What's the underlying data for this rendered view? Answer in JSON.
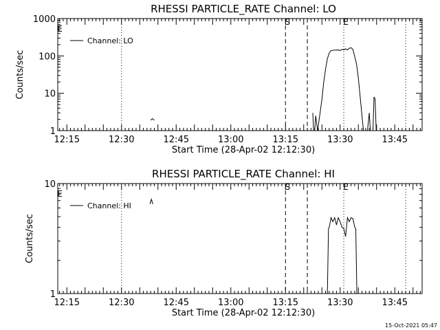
{
  "chart_data": [
    {
      "type": "line",
      "title": "RHESSI PARTICLE_RATE Channel: LO",
      "xlabel": "Start Time (28-Apr-02 12:12:30)",
      "ylabel": "Counts/sec",
      "yscale": "log",
      "ylim": [
        1,
        1000
      ],
      "xlim": [
        "12:12:30",
        "13:52:30"
      ],
      "x_ticks": [
        "12:15",
        "12:30",
        "12:45",
        "13:00",
        "13:15",
        "13:30",
        "13:45"
      ],
      "y_ticks": [
        "1",
        "10",
        "100",
        "1000"
      ],
      "legend": {
        "placement": "top-left",
        "label": "Channel: LO"
      },
      "event_lines": [
        {
          "time": "12:30",
          "style": "dotted",
          "label": ""
        },
        {
          "time": "13:15",
          "style": "dashed",
          "label": "S"
        },
        {
          "time": "13:21",
          "style": "dashed",
          "label": ""
        },
        {
          "time": "13:31",
          "style": "dotted",
          "label": "E"
        },
        {
          "time": "13:48",
          "style": "dotted",
          "label": ""
        }
      ],
      "corner_labels": [
        "E"
      ],
      "series": [
        {
          "segments": [
            [
              [
                "12:38",
                1.9
              ],
              [
                "12:38.5",
                2.1
              ],
              [
                "12:39",
                1.9
              ]
            ],
            [
              [
                "13:22.5",
                3.0
              ],
              [
                "13:22.7",
                1.0
              ]
            ],
            [
              [
                "13:23",
                1.0
              ],
              [
                "13:23.3",
                2.5
              ],
              [
                "13:23.8",
                1.0
              ]
            ],
            [
              [
                "13:23.8",
                1.0
              ],
              [
                "13:24.5",
                3.0
              ],
              [
                "13:25",
                7
              ],
              [
                "13:25.5",
                20
              ],
              [
                "13:26",
                45
              ],
              [
                "13:26.5",
                85
              ],
              [
                "13:27",
                120
              ],
              [
                "13:27.5",
                138
              ],
              [
                "13:28",
                142
              ],
              [
                "13:29",
                144
              ],
              [
                "13:29.5",
                145
              ],
              [
                "13:30",
                140
              ],
              [
                "13:30.5",
                150
              ],
              [
                "13:31",
                145
              ],
              [
                "13:31.5",
                155
              ],
              [
                "13:32",
                145
              ],
              [
                "13:32.5",
                160
              ],
              [
                "13:33",
                165
              ],
              [
                "13:33.5",
                150
              ],
              [
                "13:34",
                95
              ],
              [
                "13:34.5",
                60
              ],
              [
                "13:35",
                25
              ],
              [
                "13:35.5",
                8
              ],
              [
                "13:36",
                2.5
              ],
              [
                "13:36.4",
                1.0
              ]
            ],
            [
              [
                "13:37.5",
                1.0
              ],
              [
                "13:38",
                3.0
              ],
              [
                "13:38.3",
                1.0
              ]
            ],
            [
              [
                "13:39",
                1.0
              ],
              [
                "13:39.3",
                8
              ],
              [
                "13:39.6",
                7
              ],
              [
                "13:39.9",
                1.0
              ]
            ]
          ]
        }
      ]
    },
    {
      "type": "line",
      "title": "RHESSI PARTICLE_RATE Channel: HI",
      "xlabel": "Start Time (28-Apr-02 12:12:30)",
      "ylabel": "Counts/sec",
      "yscale": "log",
      "ylim": [
        1,
        10
      ],
      "xlim": [
        "12:12:30",
        "13:52:30"
      ],
      "x_ticks": [
        "12:15",
        "12:30",
        "12:45",
        "13:00",
        "13:15",
        "13:30",
        "13:45"
      ],
      "y_ticks": [
        "1",
        "10"
      ],
      "legend": {
        "placement": "top-left",
        "label": "Channel: HI"
      },
      "event_lines": [
        {
          "time": "12:30",
          "style": "dotted",
          "label": ""
        },
        {
          "time": "13:15",
          "style": "dashed",
          "label": "S"
        },
        {
          "time": "13:21",
          "style": "dashed",
          "label": ""
        },
        {
          "time": "13:31",
          "style": "dotted",
          "label": "E"
        },
        {
          "time": "13:48",
          "style": "dotted",
          "label": ""
        }
      ],
      "corner_labels": [
        "E"
      ],
      "series": [
        {
          "segments": [
            [
              [
                "12:37.8",
                6.5
              ],
              [
                "12:38.2",
                7.2
              ],
              [
                "12:38.6",
                6.5
              ]
            ],
            [
              [
                "13:26.5",
                1.0
              ],
              [
                "13:26.8",
                3.9
              ],
              [
                "13:27",
                4.0
              ],
              [
                "13:27.5",
                4.9
              ],
              [
                "13:28",
                4.5
              ],
              [
                "13:28.5",
                4.9
              ],
              [
                "13:29",
                4.2
              ],
              [
                "13:29.5",
                4.9
              ],
              [
                "13:30",
                4.5
              ],
              [
                "13:30.5",
                4.0
              ],
              [
                "13:31",
                3.9
              ],
              [
                "13:31.5",
                3.3
              ],
              [
                "13:32",
                4.9
              ],
              [
                "13:32.5",
                4.5
              ],
              [
                "13:33",
                4.9
              ],
              [
                "13:33.5",
                4.8
              ],
              [
                "13:34",
                4.0
              ],
              [
                "13:34.3",
                3.9
              ],
              [
                "13:34.6",
                1.0
              ]
            ]
          ]
        }
      ]
    }
  ],
  "footer": {
    "timestamp": "15-Oct-2021 05:47"
  }
}
